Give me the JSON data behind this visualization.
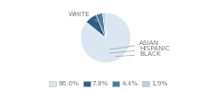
{
  "labels": [
    "WHITE",
    "BLACK",
    "HISPANIC",
    "ASIAN"
  ],
  "values": [
    86.0,
    7.8,
    4.4,
    1.9
  ],
  "colors": [
    "#dce6f1",
    "#2e5f8a",
    "#4a7eaa",
    "#b8cfe0"
  ],
  "legend_labels": [
    "86.0%",
    "7.8%",
    "4.4%",
    "1.9%"
  ],
  "startangle": 90,
  "figsize": [
    2.4,
    1.0
  ],
  "dpi": 100,
  "bg": "#ffffff",
  "text_color": "#777777"
}
